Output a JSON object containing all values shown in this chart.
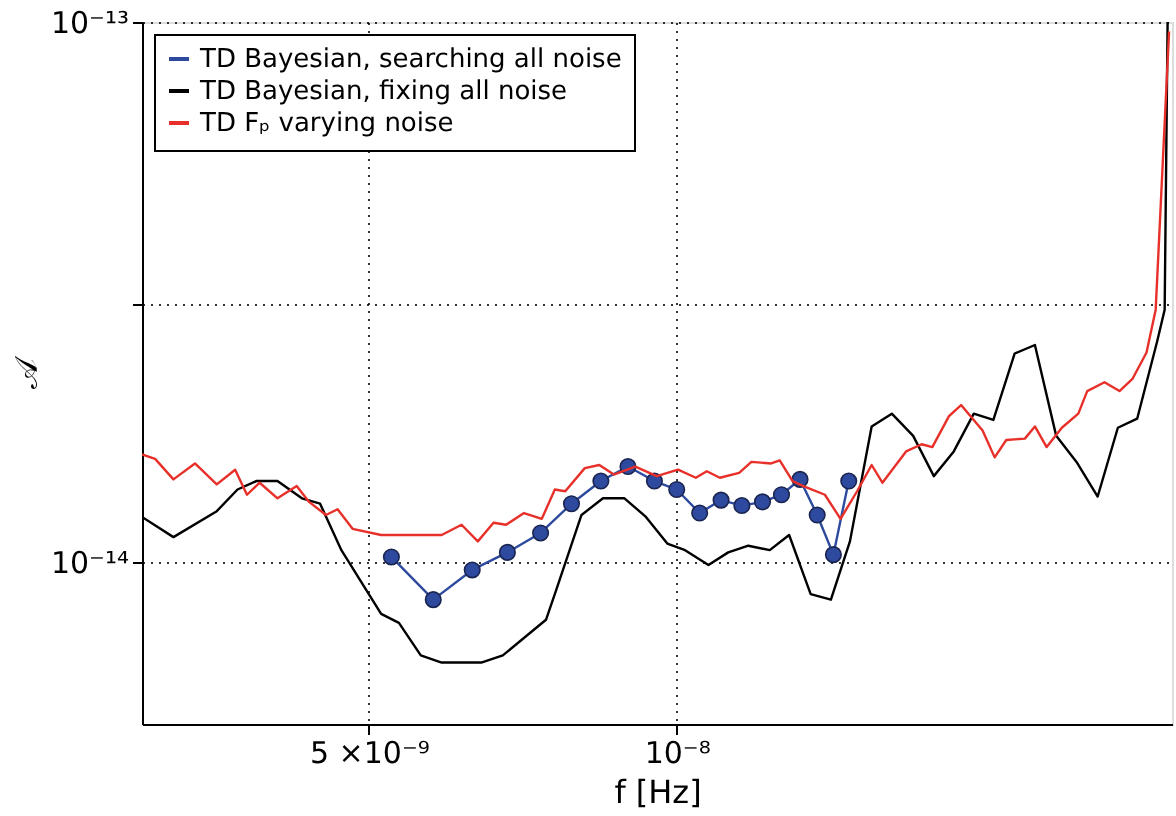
{
  "chart_data": {
    "type": "line",
    "xlabel": "f [Hz]",
    "ylabel": "𝒜",
    "log": "xy",
    "grid": true,
    "legend": "top left",
    "xlim": [
      3e-09,
      3.05e-08
    ],
    "ylim": [
      5e-15,
      1e-13
    ],
    "xticks": [
      {
        "value": 5e-09,
        "label": "5 ×10⁻⁹"
      },
      {
        "value": 1e-08,
        "label": "10⁻⁸"
      }
    ],
    "yticks": [
      {
        "value": 1e-14,
        "label": "10⁻¹⁴"
      },
      {
        "value": 3e-14,
        "label": null
      },
      {
        "value": 1e-13,
        "label": "10⁻¹³"
      }
    ],
    "series": [
      {
        "name": "TD Bayesian, searching all noise",
        "color": "#2e4a9e",
        "marker": "circle",
        "x": [
          5.26e-09,
          5.78e-09,
          6.31e-09,
          6.83e-09,
          7.36e-09,
          7.89e-09,
          8.43e-09,
          8.96e-09,
          9.51e-09,
          1e-08,
          1.053e-08,
          1.105e-08,
          1.158e-08,
          1.213e-08,
          1.266e-08,
          1.32e-08,
          1.372e-08,
          1.423e-08,
          1.473e-08
        ],
        "values": [
          1.02e-14,
          8.5e-15,
          9.65e-15,
          1.04e-14,
          1.13e-14,
          1.28e-14,
          1.41e-14,
          1.5e-14,
          1.41e-14,
          1.36e-14,
          1.23e-14,
          1.3e-14,
          1.27e-14,
          1.29e-14,
          1.33e-14,
          1.42e-14,
          1.22e-14,
          1.03e-14,
          1.41e-14
        ]
      },
      {
        "name": "TD Bayesian, fixing all noise",
        "color": "#000000",
        "marker": "none",
        "x": [
          3e-09,
          3.22e-09,
          3.55e-09,
          3.72e-09,
          3.88e-09,
          4.07e-09,
          4.3e-09,
          4.48e-09,
          4.7e-09,
          5.14e-09,
          5.35e-09,
          5.62e-09,
          5.89e-09,
          6.44e-09,
          6.76e-09,
          7.45e-09,
          7.63e-09,
          8.07e-09,
          8.47e-09,
          8.89e-09,
          9.33e-09,
          9.79e-09,
          1.019e-08,
          1.074e-08,
          1.123e-08,
          1.175e-08,
          1.233e-08,
          1.288e-08,
          1.352e-08,
          1.415e-08,
          1.477e-08,
          1.551e-08,
          1.623e-08,
          1.703e-08,
          1.784e-08,
          1.866e-08,
          1.952e-08,
          2.04e-08,
          2.14e-08,
          2.24e-08,
          2.35e-08,
          2.46e-08,
          2.58e-08,
          2.7e-08,
          2.82e-08,
          2.95e-08,
          3e-08,
          3.02e-08
        ],
        "values": [
          1.21e-14,
          1.11e-14,
          1.24e-14,
          1.36e-14,
          1.41e-14,
          1.41e-14,
          1.31e-14,
          1.28e-14,
          1.05e-14,
          8e-15,
          7.7e-15,
          6.7e-15,
          6.5e-15,
          6.5e-15,
          6.7e-15,
          7.8e-15,
          8.9e-15,
          1.22e-14,
          1.31e-14,
          1.31e-14,
          1.21e-14,
          1.08e-14,
          1.05e-14,
          9.85e-15,
          1.04e-14,
          1.07e-14,
          1.05e-14,
          1.12e-14,
          8.7e-15,
          8.5e-15,
          1.09e-14,
          1.78e-14,
          1.88e-14,
          1.71e-14,
          1.44e-14,
          1.6e-14,
          1.88e-14,
          1.83e-14,
          2.43e-14,
          2.52e-14,
          1.71e-14,
          1.53e-14,
          1.32e-14,
          1.77e-14,
          1.84e-14,
          2.56e-14,
          2.93e-14,
          1e-13
        ]
      },
      {
        "name": "TD Fₚ varying noise",
        "color": "#e8302a",
        "marker": "none",
        "x": [
          3e-09,
          3.09e-09,
          3.22e-09,
          3.38e-09,
          3.55e-09,
          3.7e-09,
          3.8e-09,
          3.91e-09,
          4.07e-09,
          4.25e-09,
          4.37e-09,
          4.54e-09,
          4.66e-09,
          4.82e-09,
          5.14e-09,
          5.62e-09,
          5.89e-09,
          6.16e-09,
          6.39e-09,
          6.62e-09,
          6.81e-09,
          7.09e-09,
          7.38e-09,
          7.6e-09,
          7.78e-09,
          8.13e-09,
          8.4e-09,
          8.68e-09,
          9.11e-09,
          9.56e-09,
          1.003e-08,
          1.044e-08,
          1.07e-08,
          1.102e-08,
          1.151e-08,
          1.183e-08,
          1.237e-08,
          1.261e-08,
          1.298e-08,
          1.33e-08,
          1.396e-08,
          1.446e-08,
          1.501e-08,
          1.551e-08,
          1.589e-08,
          1.676e-08,
          1.736e-08,
          1.778e-08,
          1.846e-08,
          1.897e-08,
          1.991e-08,
          2.046e-08,
          2.1e-08,
          2.19e-08,
          2.24e-08,
          2.3e-08,
          2.38e-08,
          2.47e-08,
          2.52e-08,
          2.62e-08,
          2.71e-08,
          2.79e-08,
          2.88e-08,
          2.94e-08,
          3.03e-08
        ],
        "values": [
          1.58e-14,
          1.55e-14,
          1.42e-14,
          1.52e-14,
          1.39e-14,
          1.48e-14,
          1.33e-14,
          1.4e-14,
          1.31e-14,
          1.38e-14,
          1.29e-14,
          1.22e-14,
          1.25e-14,
          1.15e-14,
          1.12e-14,
          1.12e-14,
          1.12e-14,
          1.17e-14,
          1.09e-14,
          1.18e-14,
          1.17e-14,
          1.23e-14,
          1.2e-14,
          1.36e-14,
          1.35e-14,
          1.49e-14,
          1.51e-14,
          1.45e-14,
          1.5e-14,
          1.44e-14,
          1.48e-14,
          1.43e-14,
          1.47e-14,
          1.43e-14,
          1.46e-14,
          1.53e-14,
          1.52e-14,
          1.54e-14,
          1.41e-14,
          1.38e-14,
          1.33e-14,
          1.2e-14,
          1.35e-14,
          1.51e-14,
          1.4e-14,
          1.6e-14,
          1.65e-14,
          1.63e-14,
          1.86e-14,
          1.95e-14,
          1.75e-14,
          1.56e-14,
          1.68e-14,
          1.69e-14,
          1.78e-14,
          1.63e-14,
          1.77e-14,
          1.88e-14,
          2.07e-14,
          2.15e-14,
          2.07e-14,
          2.18e-14,
          2.44e-14,
          2.93e-14,
          9.6e-14
        ]
      }
    ]
  }
}
